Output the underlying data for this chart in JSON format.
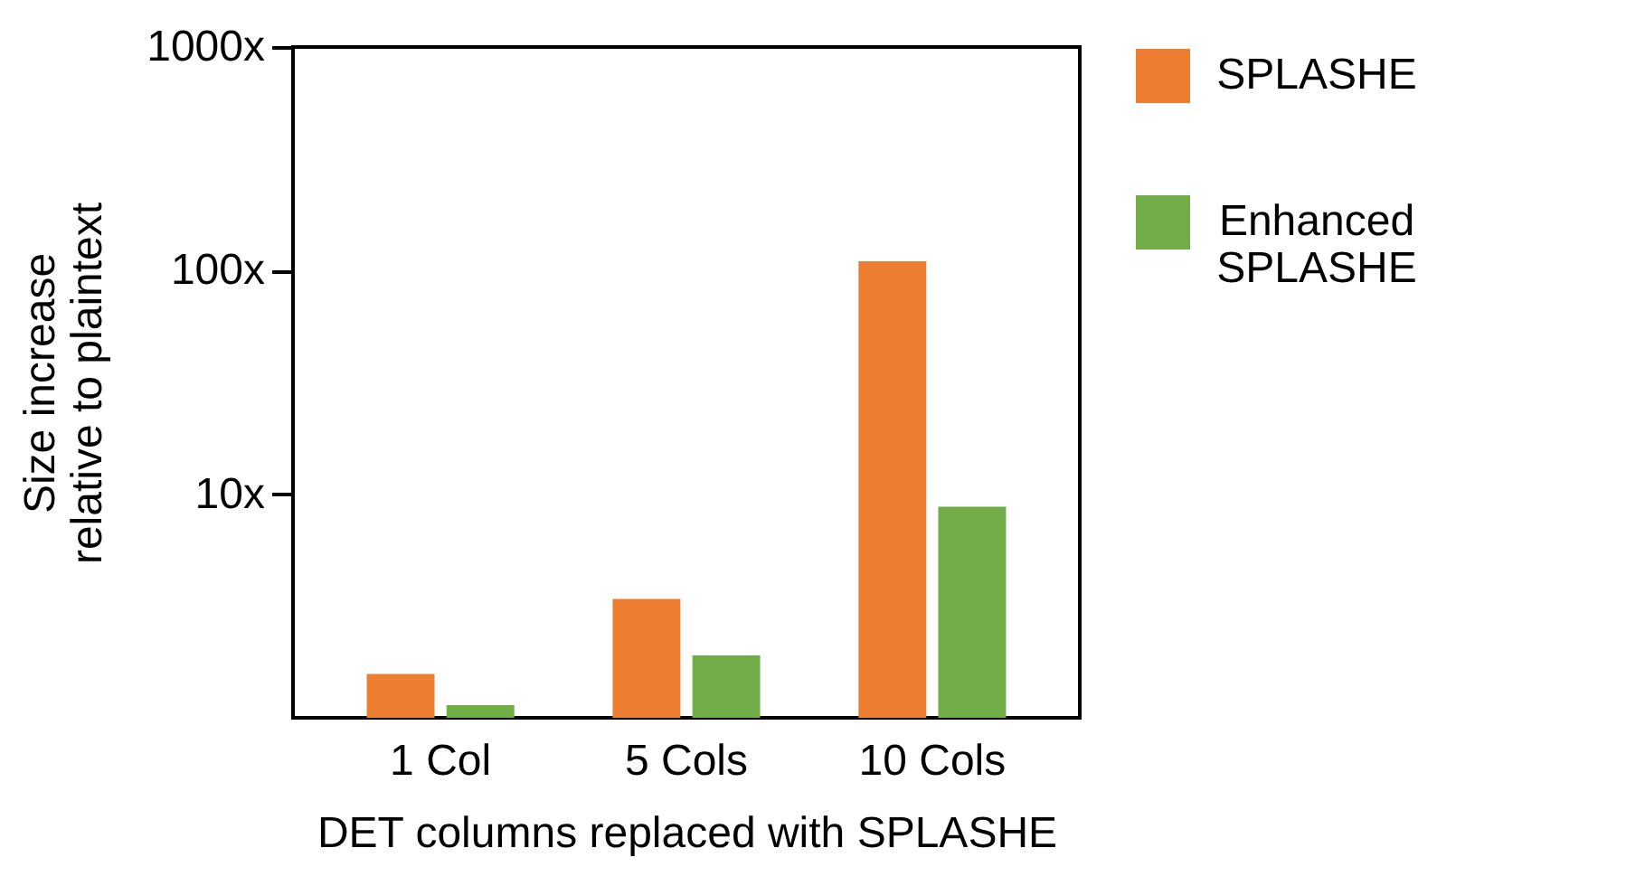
{
  "chart_data": {
    "type": "bar",
    "xlabel": "DET columns replaced with SPLASHE",
    "ylabel": "Size increase relative to plaintext",
    "categories": [
      "1 Col",
      "5 Cols",
      "10 Cols"
    ],
    "series": [
      {
        "name": "SPLASHE",
        "color": "#ed7d31",
        "values": [
          1.57,
          3.4,
          110
        ]
      },
      {
        "name": "Enhanced SPLASHE",
        "color": "#70ad47",
        "values": [
          1.14,
          1.9,
          8.8
        ]
      }
    ],
    "log": "y",
    "ylim": [
      1,
      1000
    ],
    "yticks": [
      {
        "value": 10,
        "label": "10x"
      },
      {
        "value": 100,
        "label": "100x"
      },
      {
        "value": 1000,
        "label": "1000x"
      }
    ],
    "legend": "right",
    "grid": false
  }
}
